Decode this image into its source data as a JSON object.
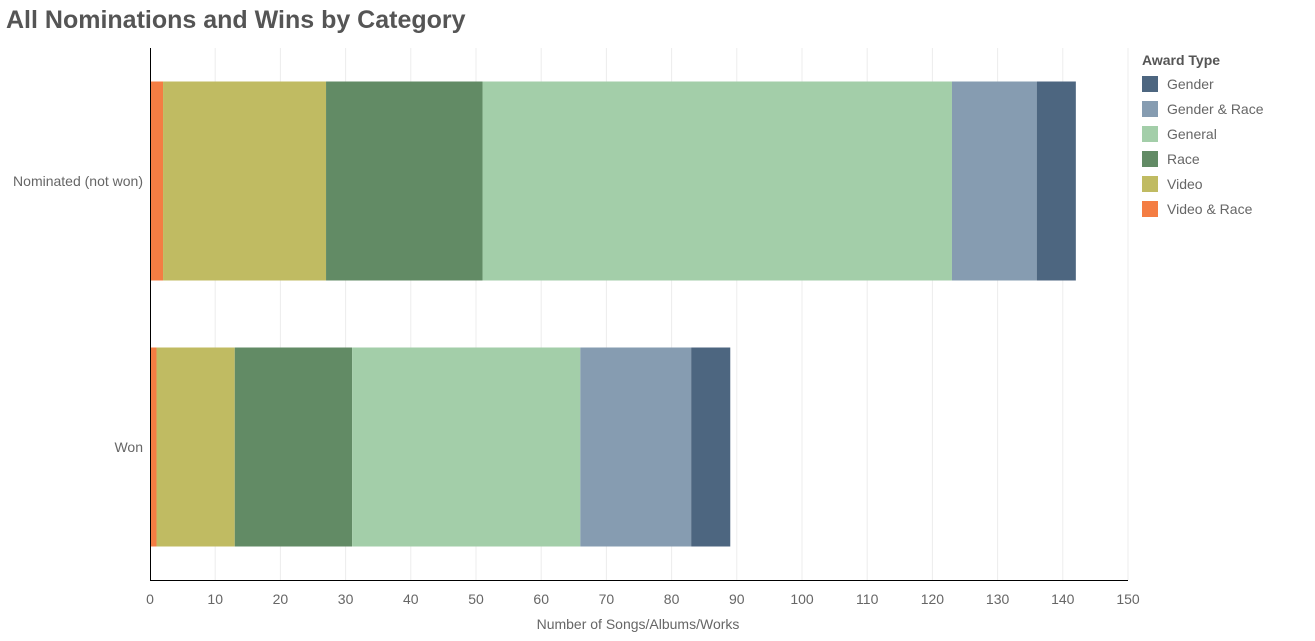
{
  "chart_data": {
    "type": "bar",
    "orientation": "horizontal",
    "stacked": true,
    "title": "All Nominations and Wins by Category",
    "xlabel": "Number of Songs/Albums/Works",
    "ylabel": "",
    "xlim": [
      0,
      150
    ],
    "xticks": [
      "0",
      "10",
      "20",
      "30",
      "40",
      "50",
      "60",
      "70",
      "80",
      "90",
      "100",
      "110",
      "120",
      "130",
      "140",
      "150"
    ],
    "grid": true,
    "categories": [
      "Nominated (not won)",
      "Won"
    ],
    "legend": {
      "title": "Award Type",
      "placement": "right",
      "entries": [
        "Gender",
        "Gender & Race",
        "General",
        "Race",
        "Video",
        "Video & Race"
      ]
    },
    "series": [
      {
        "name": "Video & Race",
        "color": "#f47d43",
        "values": [
          2,
          1
        ]
      },
      {
        "name": "Video",
        "color": "#c0bb62",
        "values": [
          25,
          12
        ]
      },
      {
        "name": "Race",
        "color": "#628b65",
        "values": [
          24,
          18
        ]
      },
      {
        "name": "General",
        "color": "#a3cea9",
        "values": [
          72,
          35
        ]
      },
      {
        "name": "Gender & Race",
        "color": "#869cb1",
        "values": [
          13,
          17
        ]
      },
      {
        "name": "Gender",
        "color": "#4d6680",
        "values": [
          6,
          6
        ]
      }
    ]
  }
}
